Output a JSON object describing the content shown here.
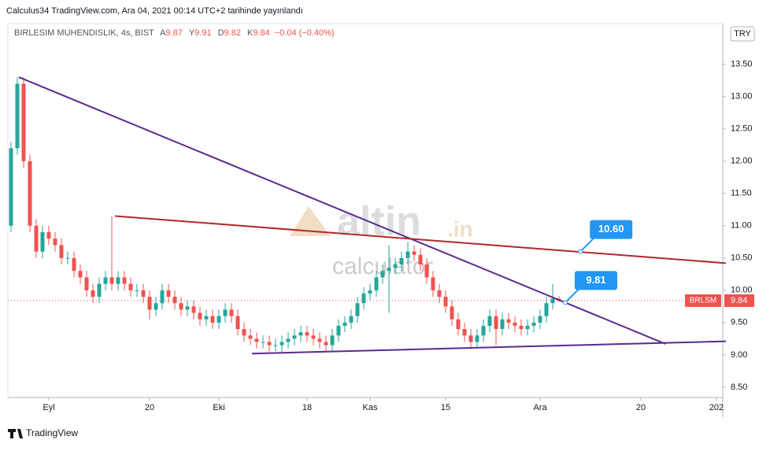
{
  "header": {
    "published": "Calculus34 TradingView.com, Ara 04, 2021 00:14 UTC+2 tarihinde yayınlandı",
    "footer": "TradingView"
  },
  "chart_data": {
    "type": "candlestick",
    "symbol": "BIRLESIM MUHENDISLIK, 4s, BIST",
    "ticker": "BRLSM",
    "currency": "TRY",
    "legend": {
      "open_label": "A",
      "open": 9.87,
      "high_label": "Y",
      "high": 9.91,
      "low_label": "D",
      "low": 9.82,
      "close_label": "K",
      "close": 9.84,
      "change": "−0.04 (−0.40%)"
    },
    "last_price": 9.84,
    "up_color": "#26a69a",
    "down_color": "#ef5350",
    "watermark": [
      "altin",
      ".in",
      "calculator"
    ],
    "categories": [
      null,
      null,
      null,
      null,
      null,
      null,
      "Eyl",
      null,
      null,
      null,
      null,
      null,
      null,
      null,
      null,
      null,
      null,
      null,
      null,
      null,
      null,
      null,
      "20",
      null,
      null,
      null,
      null,
      null,
      null,
      null,
      null,
      null,
      null,
      "Eki",
      null,
      null,
      null,
      null,
      null,
      null,
      null,
      null,
      null,
      null,
      null,
      null,
      null,
      "18",
      null,
      null,
      null,
      null,
      null,
      null,
      null,
      null,
      null,
      "Kas",
      null,
      null,
      null,
      null,
      null,
      null,
      null,
      null,
      null,
      null,
      null,
      "15",
      null,
      null,
      null,
      null,
      null,
      null,
      null,
      null,
      null,
      null,
      null,
      null,
      null,
      null,
      "Ara",
      null,
      null,
      null,
      null,
      null,
      null,
      null,
      null,
      null,
      null,
      null,
      null,
      null,
      null,
      null,
      "20",
      null,
      null,
      null,
      null,
      null,
      null,
      null,
      null,
      null,
      null,
      null,
      "202"
    ],
    "open": [
      11.0,
      12.2,
      13.2,
      12.0,
      11.0,
      10.6,
      10.9,
      10.8,
      10.7,
      10.5,
      10.5,
      10.3,
      10.2,
      10.0,
      9.9,
      10.1,
      10.2,
      10.1,
      10.2,
      10.1,
      10.0,
      10.0,
      9.9,
      9.7,
      9.8,
      10.0,
      9.9,
      9.8,
      9.7,
      9.75,
      9.65,
      9.55,
      9.6,
      9.5,
      9.6,
      9.7,
      9.6,
      9.4,
      9.3,
      9.25,
      9.2,
      9.2,
      9.15,
      9.15,
      9.2,
      9.25,
      9.3,
      9.35,
      9.3,
      9.25,
      9.2,
      9.15,
      9.3,
      9.45,
      9.5,
      9.6,
      9.8,
      9.95,
      10.0,
      10.2,
      10.3,
      10.35,
      10.4,
      10.5,
      10.6,
      10.55,
      10.4,
      10.2,
      10.0,
      9.9,
      9.75,
      9.55,
      9.4,
      9.3,
      9.2,
      9.3,
      9.45,
      9.6,
      9.4,
      9.55,
      9.5,
      9.45,
      9.4,
      9.45,
      9.5,
      9.6,
      9.8,
      9.87,
      null,
      null,
      null,
      null,
      null,
      null,
      null,
      null,
      null,
      null,
      null,
      null,
      null,
      null,
      null,
      null,
      null,
      null,
      null,
      null,
      null,
      null,
      null,
      null,
      null
    ],
    "high": [
      12.3,
      13.3,
      13.3,
      12.1,
      11.1,
      11.0,
      11.0,
      10.9,
      10.8,
      10.6,
      10.6,
      10.4,
      10.3,
      10.1,
      10.2,
      10.3,
      11.15,
      10.3,
      10.3,
      10.2,
      10.1,
      10.1,
      10.0,
      9.9,
      10.1,
      10.1,
      10.0,
      9.9,
      9.85,
      9.85,
      9.75,
      9.7,
      9.7,
      9.7,
      9.8,
      9.8,
      9.7,
      9.5,
      9.4,
      9.35,
      9.3,
      9.3,
      9.25,
      9.3,
      9.35,
      9.4,
      9.45,
      9.45,
      9.4,
      9.35,
      9.3,
      9.4,
      9.55,
      9.6,
      9.7,
      9.9,
      10.05,
      10.1,
      10.3,
      10.4,
      10.7,
      10.5,
      10.6,
      10.75,
      10.7,
      10.65,
      10.5,
      10.3,
      10.1,
      10.0,
      9.85,
      9.65,
      9.5,
      9.4,
      9.4,
      9.55,
      9.7,
      9.7,
      9.65,
      9.65,
      9.6,
      9.55,
      9.55,
      9.6,
      9.7,
      9.9,
      10.1,
      9.91,
      null,
      null,
      null,
      null,
      null,
      null,
      null,
      null,
      null,
      null,
      null,
      null,
      null,
      null,
      null,
      null,
      null,
      null,
      null,
      null,
      null,
      null,
      null,
      null,
      null
    ],
    "low": [
      10.9,
      12.1,
      11.9,
      10.9,
      10.5,
      10.5,
      10.7,
      10.6,
      10.4,
      10.4,
      10.2,
      10.1,
      9.9,
      9.8,
      9.8,
      10.0,
      10.0,
      10.0,
      10.0,
      9.9,
      9.9,
      9.8,
      9.55,
      9.6,
      9.7,
      9.8,
      9.7,
      9.6,
      9.6,
      9.55,
      9.45,
      9.45,
      9.4,
      9.4,
      9.5,
      9.5,
      9.3,
      9.2,
      9.15,
      9.1,
      9.1,
      9.05,
      9.05,
      9.05,
      9.1,
      9.15,
      9.2,
      9.2,
      9.15,
      9.1,
      9.05,
      9.05,
      9.2,
      9.35,
      9.4,
      9.5,
      9.7,
      9.85,
      9.9,
      10.1,
      9.65,
      10.25,
      10.3,
      10.4,
      10.45,
      10.3,
      10.1,
      9.9,
      9.8,
      9.65,
      9.45,
      9.3,
      9.2,
      9.1,
      9.1,
      9.2,
      9.35,
      9.15,
      9.3,
      9.4,
      9.35,
      9.3,
      9.3,
      9.35,
      9.4,
      9.5,
      9.7,
      9.82,
      null,
      null,
      null,
      null,
      null,
      null,
      null,
      null,
      null,
      null,
      null,
      null,
      null,
      null,
      null,
      null,
      null,
      null,
      null,
      null,
      null,
      null,
      null,
      null,
      null
    ],
    "close": [
      12.2,
      13.2,
      12.0,
      11.0,
      10.6,
      10.9,
      10.8,
      10.7,
      10.5,
      10.5,
      10.3,
      10.2,
      10.0,
      9.9,
      10.1,
      10.2,
      10.1,
      10.2,
      10.1,
      10.0,
      10.0,
      9.9,
      9.7,
      9.8,
      10.0,
      9.9,
      9.8,
      9.7,
      9.75,
      9.65,
      9.55,
      9.6,
      9.5,
      9.6,
      9.7,
      9.6,
      9.4,
      9.3,
      9.25,
      9.2,
      9.2,
      9.15,
      9.15,
      9.2,
      9.25,
      9.3,
      9.35,
      9.3,
      9.25,
      9.2,
      9.15,
      9.3,
      9.45,
      9.5,
      9.6,
      9.8,
      9.95,
      10.0,
      10.2,
      10.3,
      10.35,
      10.4,
      10.5,
      10.6,
      10.55,
      10.4,
      10.2,
      10.0,
      9.9,
      9.75,
      9.55,
      9.4,
      9.3,
      9.2,
      9.3,
      9.45,
      9.6,
      9.4,
      9.55,
      9.5,
      9.45,
      9.4,
      9.45,
      9.5,
      9.6,
      9.8,
      9.87,
      9.84,
      null,
      null,
      null,
      null,
      null,
      null,
      null,
      null,
      null,
      null,
      null,
      null,
      null,
      null,
      null,
      null,
      null,
      null,
      null,
      null,
      null,
      null,
      null,
      null,
      null
    ],
    "ylim": [
      8.34,
      14.13
    ],
    "yticks": [
      {
        "value": 8.5,
        "label": "8.50"
      },
      {
        "value": 9,
        "label": "9.00"
      },
      {
        "value": 9.5,
        "label": "9.50"
      },
      {
        "value": 10,
        "label": "10.00"
      },
      {
        "value": 10.5,
        "label": "10.50"
      },
      {
        "value": 11,
        "label": "11.00"
      },
      {
        "value": 11.5,
        "label": "11.50"
      },
      {
        "value": 12,
        "label": "12.00"
      },
      {
        "value": 12.5,
        "label": "12.50"
      },
      {
        "value": 13,
        "label": "13.00"
      },
      {
        "value": 13.5,
        "label": "13.50"
      }
    ],
    "trendlines": [
      {
        "color": "#5b2a8c",
        "points": [
          [
            1.25,
            13.3
          ],
          [
            103.9,
            9.17
          ]
        ]
      },
      {
        "color": "#b0282a",
        "points": [
          [
            16.5,
            11.15
          ],
          [
            113.5,
            10.42
          ]
        ]
      },
      {
        "color": "#5b2a8c",
        "points": [
          [
            38.25,
            9.02
          ],
          [
            113.5,
            9.21
          ]
        ]
      }
    ],
    "callouts": [
      {
        "value": 10.6,
        "label": "10.60",
        "x": 90.4
      },
      {
        "value": 9.81,
        "label": "9.81",
        "x": 88
      }
    ]
  }
}
